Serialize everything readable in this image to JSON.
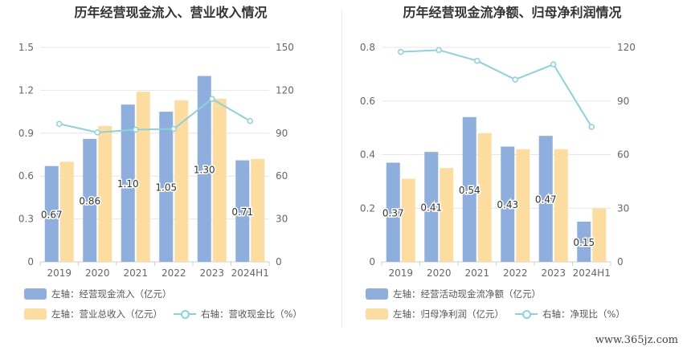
{
  "chart_data": [
    {
      "type": "bar",
      "title": "历年经营现金流入、营业收入情况",
      "categories": [
        "2019",
        "2020",
        "2021",
        "2022",
        "2023",
        "2024H1"
      ],
      "y_left": {
        "ticks": [
          "0",
          "0.3",
          "0.6",
          "0.9",
          "1.2",
          "1.5"
        ],
        "range": [
          0,
          1.5
        ]
      },
      "y_right": {
        "ticks": [
          "0",
          "30",
          "60",
          "90",
          "120",
          "150"
        ],
        "range": [
          0,
          150
        ]
      },
      "series": [
        {
          "name": "左轴：经营现金流入（亿元）",
          "type": "bar",
          "axis": "left",
          "color": "#8eaedd",
          "values": [
            0.67,
            0.86,
            1.1,
            1.05,
            1.3,
            0.71
          ],
          "labels": [
            "0.67",
            "0.86",
            "1.10",
            "1.05",
            "1.30",
            "0.71"
          ]
        },
        {
          "name": "左轴：营业总收入（亿元）",
          "type": "bar",
          "axis": "left",
          "color": "#fddca0",
          "values": [
            0.7,
            0.95,
            1.19,
            1.13,
            1.14,
            0.72
          ]
        },
        {
          "name": "右轴：营收现金比（%）",
          "type": "line",
          "axis": "right",
          "color": "#8ad3dc",
          "values": [
            96.5,
            90.5,
            92.5,
            93.0,
            114.0,
            98.5
          ]
        }
      ],
      "legend": [
        {
          "text": "左轴：经营现金流入（亿元）",
          "kind": "bar",
          "color": "#8eaedd"
        },
        {
          "text": "左轴：营业总收入（亿元）",
          "kind": "bar",
          "color": "#fddca0"
        },
        {
          "text": "右轴：营收现金比（%）",
          "kind": "line",
          "color": "#8ad3dc"
        }
      ]
    },
    {
      "type": "bar",
      "title": "历年经营现金流净额、归母净利润情况",
      "categories": [
        "2019",
        "2020",
        "2021",
        "2022",
        "2023",
        "2024H1"
      ],
      "y_left": {
        "ticks": [
          "0",
          "0.2",
          "0.4",
          "0.6",
          "0.8"
        ],
        "range": [
          0,
          0.8
        ]
      },
      "y_right": {
        "ticks": [
          "0",
          "30",
          "60",
          "90",
          "120"
        ],
        "range": [
          0,
          120
        ]
      },
      "series": [
        {
          "name": "左轴：经营活动现金流净额（亿元）",
          "type": "bar",
          "axis": "left",
          "color": "#8eaedd",
          "values": [
            0.37,
            0.41,
            0.54,
            0.43,
            0.47,
            0.15
          ],
          "labels": [
            "0.37",
            "0.41",
            "0.54",
            "0.43",
            "0.47",
            "0.15"
          ]
        },
        {
          "name": "左轴：归母净利润（亿元）",
          "type": "bar",
          "axis": "left",
          "color": "#fddca0",
          "values": [
            0.31,
            0.35,
            0.48,
            0.42,
            0.42,
            0.2
          ]
        },
        {
          "name": "右轴：净现比（%）",
          "type": "line",
          "axis": "right",
          "color": "#8ad3dc",
          "values": [
            117.5,
            118.5,
            112.5,
            102.0,
            110.5,
            75.5
          ]
        }
      ],
      "legend": [
        {
          "text": "左轴：经营活动现金流净额（亿元）",
          "kind": "bar",
          "color": "#8eaedd"
        },
        {
          "text": "左轴：归母净利润（亿元）",
          "kind": "bar",
          "color": "#fddca0"
        },
        {
          "text": "右轴：净现比（%）",
          "kind": "line",
          "color": "#8ad3dc"
        }
      ]
    }
  ],
  "watermark": "www.365jz.com"
}
